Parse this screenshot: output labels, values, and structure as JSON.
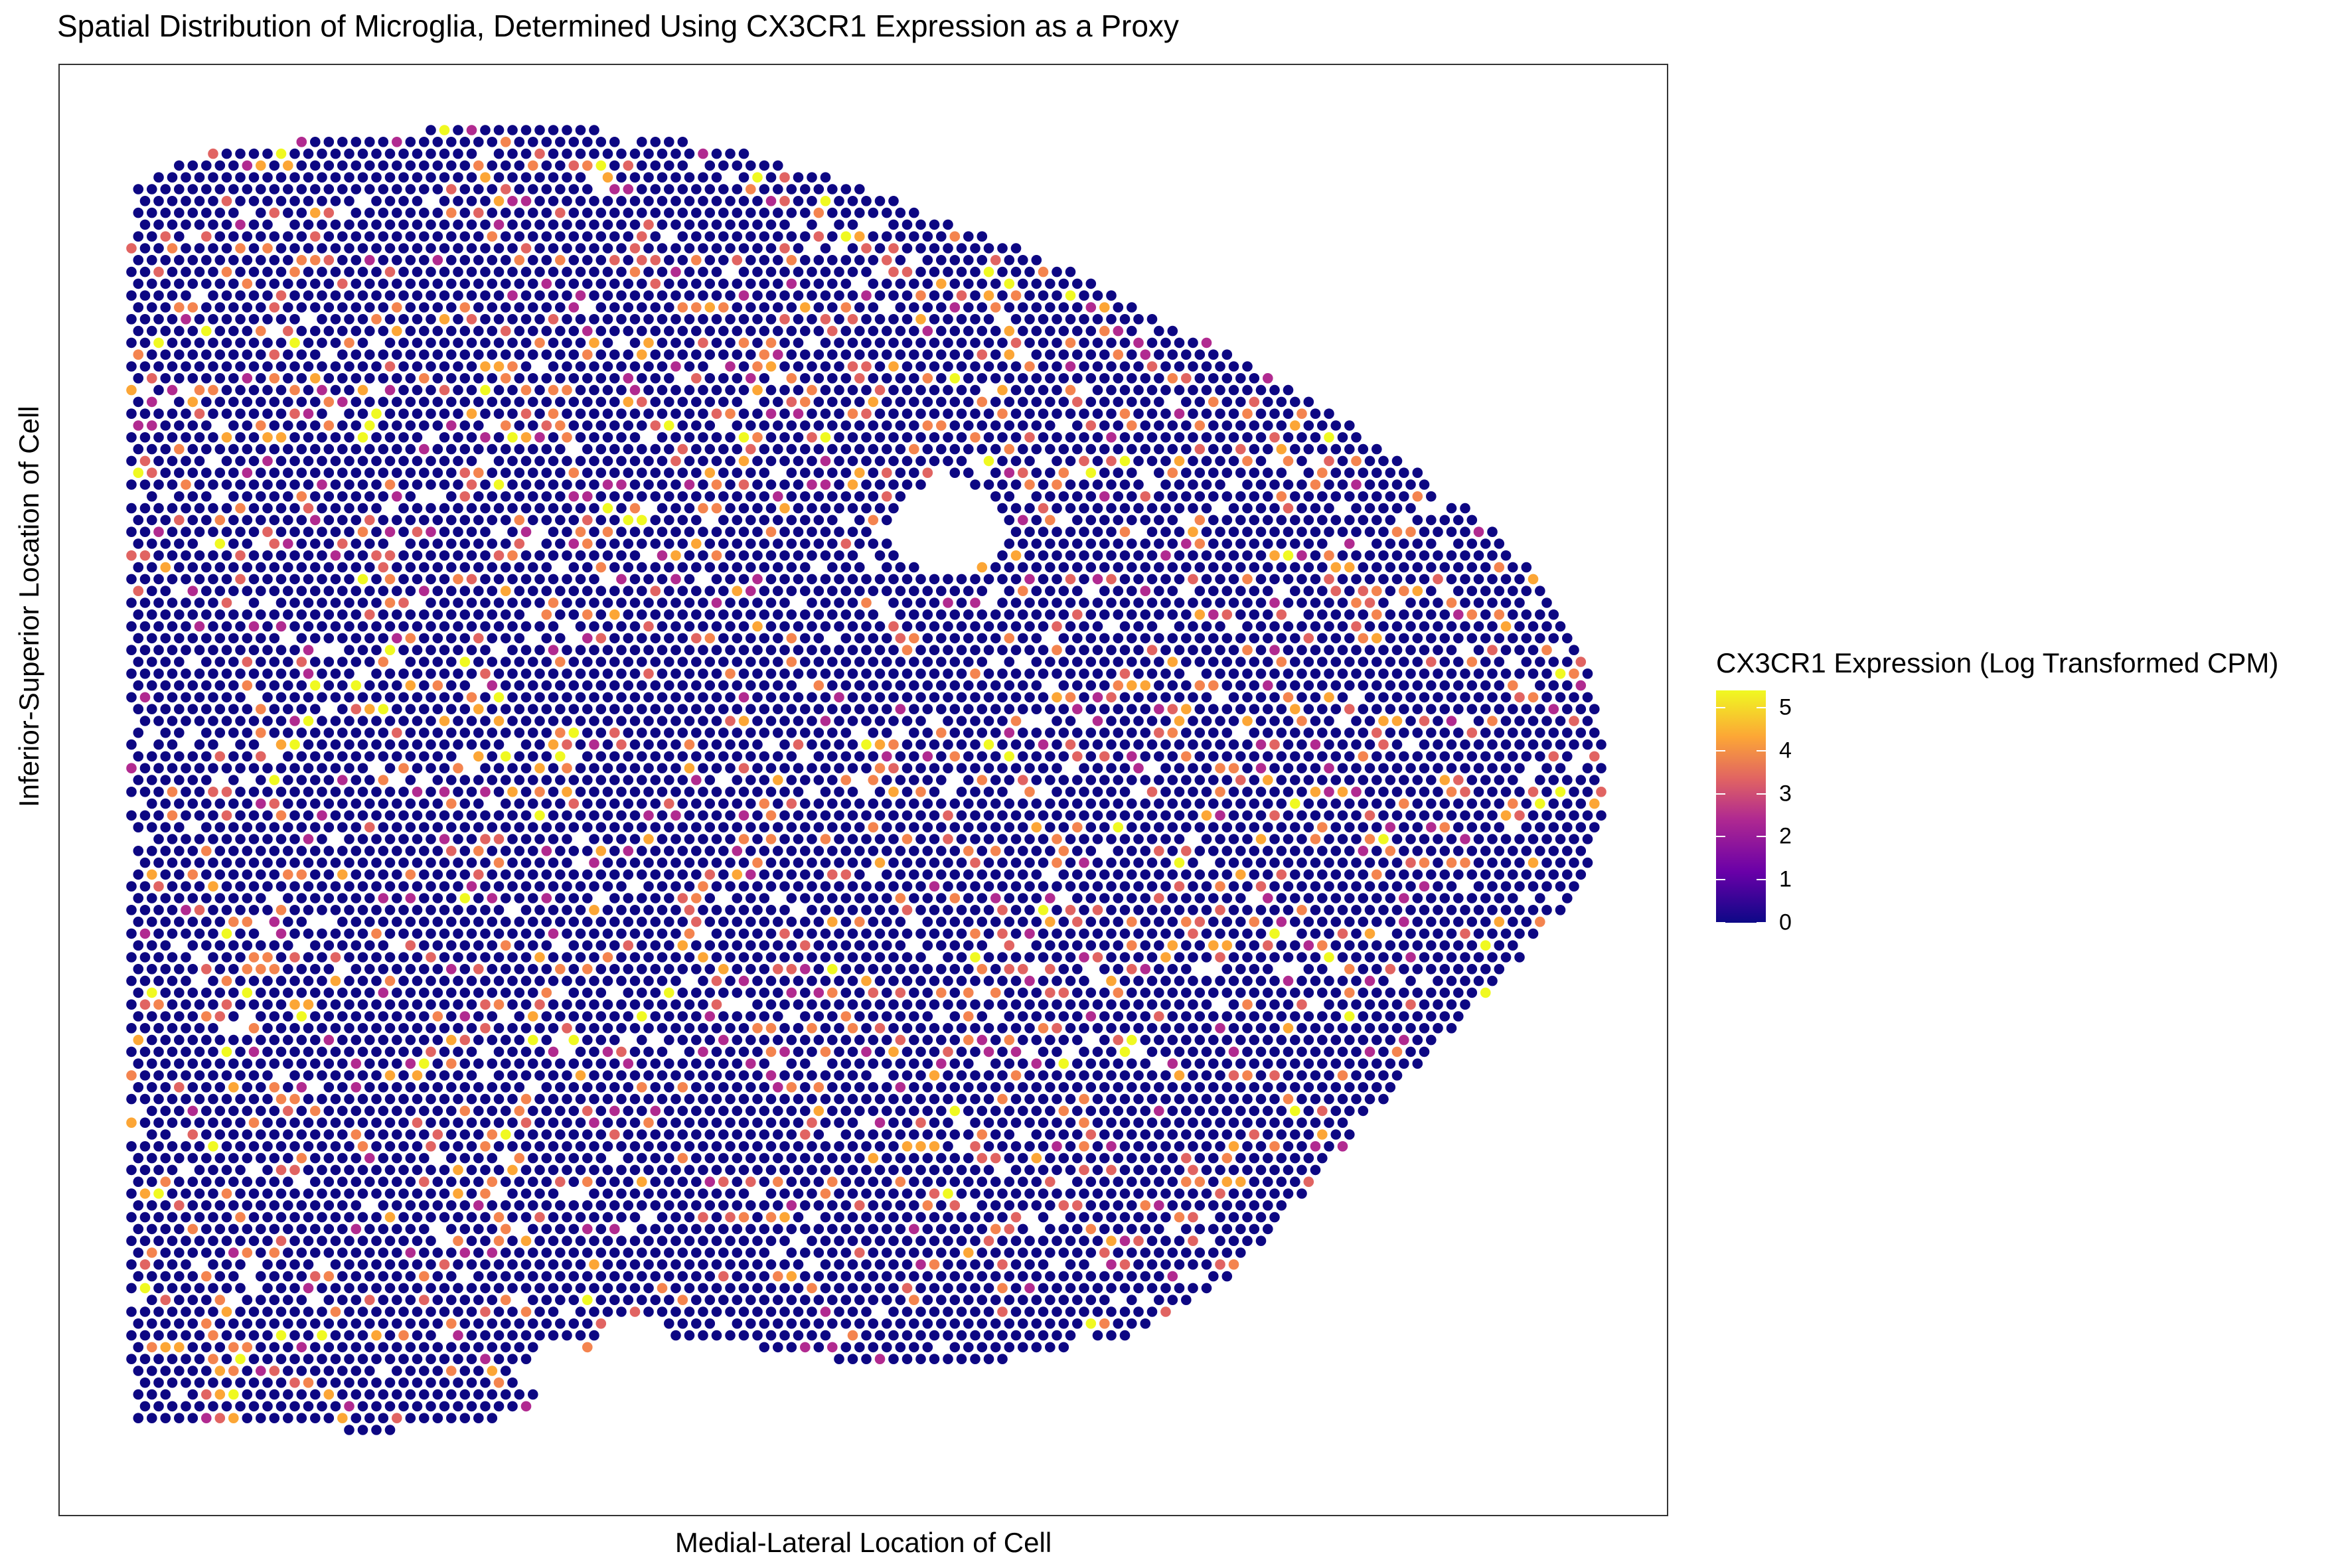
{
  "chart_data": {
    "type": "scatter",
    "title": "Spatial Distribution of Microglia, Determined Using CX3CR1 Expression as a Proxy",
    "xlabel": "Medial-Lateral Location of Cell",
    "ylabel": "Inferior-Superior Location of Cell",
    "x_ticks_shown": false,
    "y_ticks_shown": false,
    "grid": false,
    "legend": {
      "title": "CX3CR1 Expression (Log Transformed CPM)",
      "placement": "right",
      "type": "colorbar",
      "ticks": [
        "0",
        "1",
        "2",
        "3",
        "4",
        "5"
      ],
      "range": [
        0,
        5.4
      ]
    },
    "colorscale": [
      "#0d0887",
      "#6a00a8",
      "#b12a90",
      "#e16462",
      "#fca636",
      "#f0f921"
    ],
    "point_color_zero": "#0d0783",
    "tissue_outline_note_excluded": true,
    "points_summary": {
      "description_excluded": true
    }
  }
}
